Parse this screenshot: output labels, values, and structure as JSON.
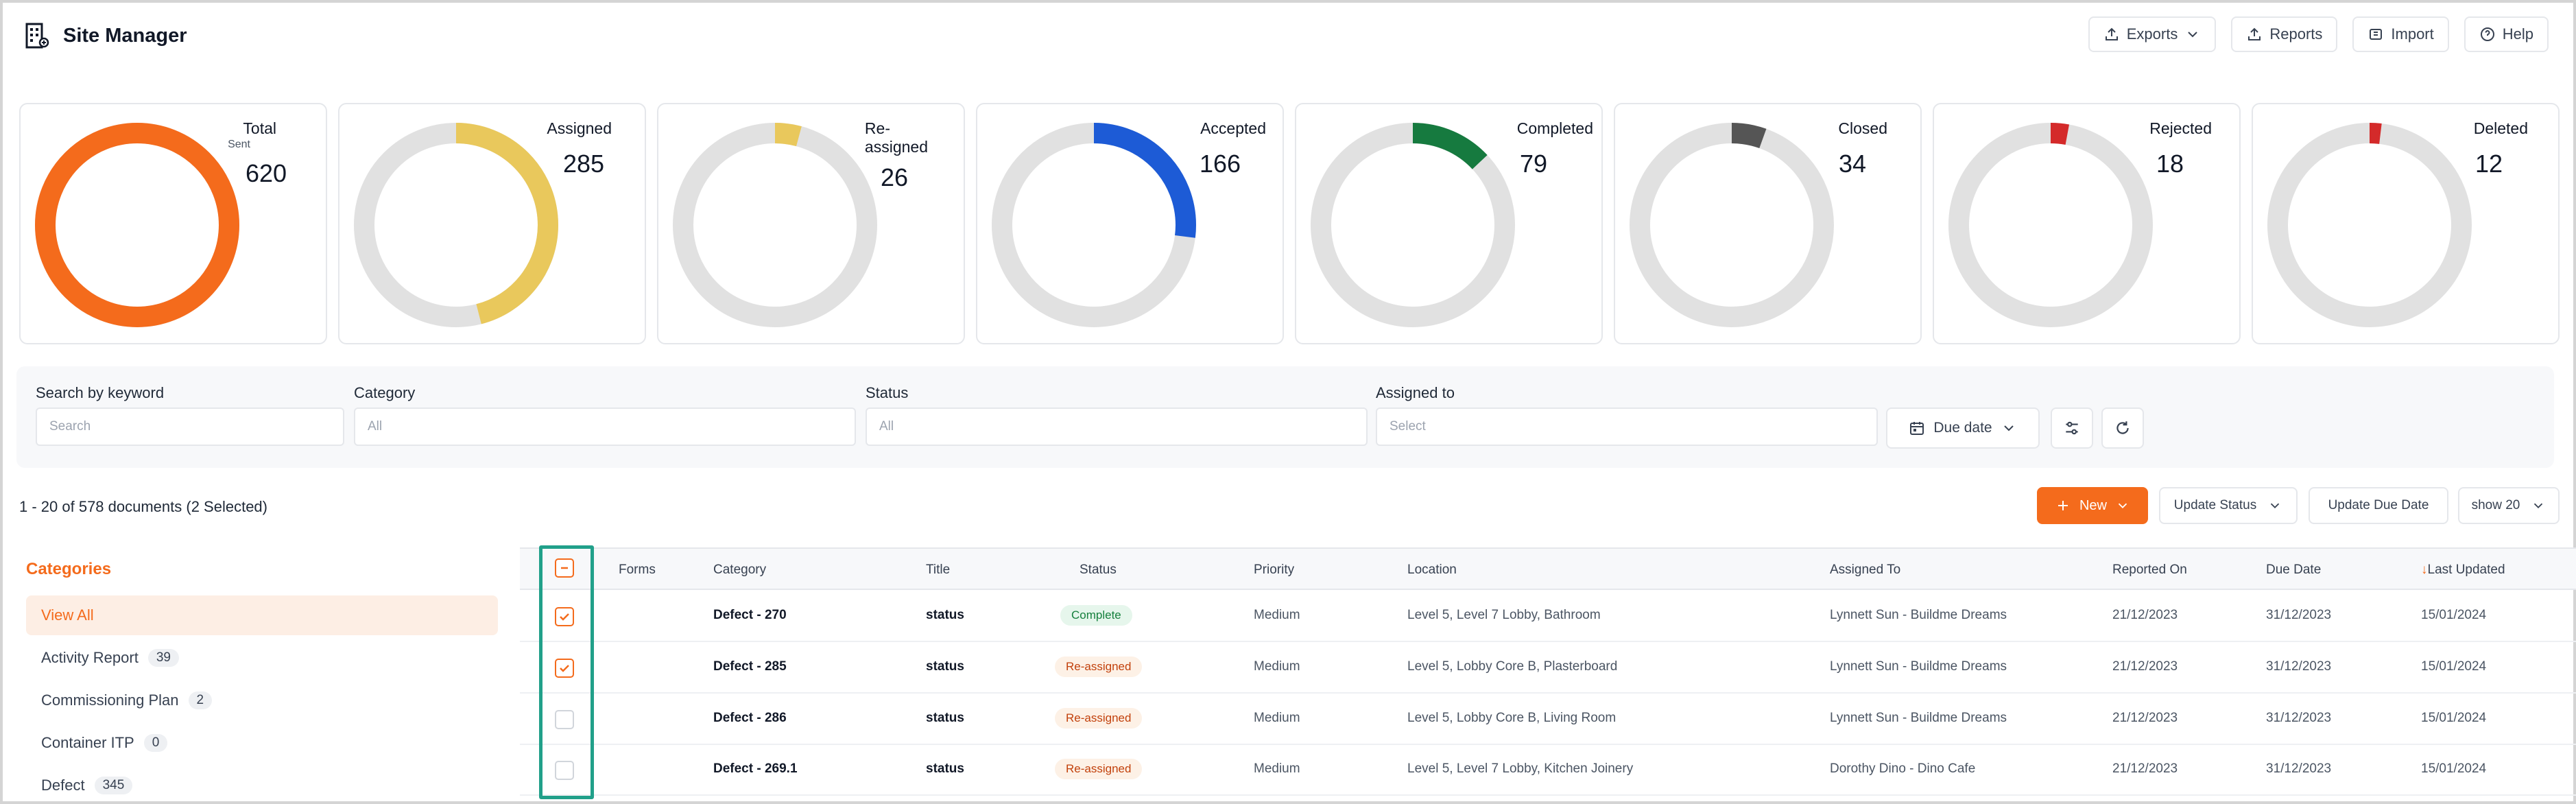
{
  "app": {
    "title": "Site Manager"
  },
  "header_actions": {
    "exports": "Exports",
    "reports": "Reports",
    "import": "Import",
    "help": "Help"
  },
  "stats": [
    {
      "label": "Total",
      "sub": "Sent",
      "value": "620",
      "fraction": 1.0,
      "color": "#f46b1c"
    },
    {
      "label": "Assigned",
      "value": "285",
      "fraction": 0.46,
      "color": "#e9c85c"
    },
    {
      "label": "Re-\nassigned",
      "value": "26",
      "fraction": 0.042,
      "color": "#e9c85c"
    },
    {
      "label": "Accepted",
      "value": "166",
      "fraction": 0.27,
      "color": "#1d5bd6"
    },
    {
      "label": "Completed",
      "value": "79",
      "fraction": 0.13,
      "color": "#167a3f"
    },
    {
      "label": "Closed",
      "value": "34",
      "fraction": 0.055,
      "color": "#555555"
    },
    {
      "label": "Rejected",
      "value": "18",
      "fraction": 0.029,
      "color": "#d42a2a"
    },
    {
      "label": "Deleted",
      "value": "12",
      "fraction": 0.019,
      "color": "#d42a2a"
    }
  ],
  "filters": {
    "keyword_label": "Search by keyword",
    "keyword_placeholder": "Search",
    "category_label": "Category",
    "category_placeholder": "All",
    "status_label": "Status",
    "status_placeholder": "All",
    "assigned_label": "Assigned to",
    "assigned_placeholder": "Select",
    "due_date": "Due date"
  },
  "docs": {
    "count_text": "1 - 20 of 578 documents (2 Selected)",
    "new_label": "New",
    "update_status": "Update Status",
    "update_due_date": "Update Due Date",
    "show": "show 20"
  },
  "categories": {
    "title": "Categories",
    "items": [
      {
        "label": "View All",
        "count": ""
      },
      {
        "label": "Activity Report",
        "count": "39"
      },
      {
        "label": "Commissioning Plan",
        "count": "2"
      },
      {
        "label": "Container ITP",
        "count": "0"
      },
      {
        "label": "Defect",
        "count": "345"
      }
    ]
  },
  "table": {
    "headers": {
      "forms": "Forms",
      "category": "Category",
      "title": "Title",
      "status": "Status",
      "priority": "Priority",
      "location": "Location",
      "assigned_to": "Assigned To",
      "reported_on": "Reported On",
      "due_date": "Due Date",
      "last_updated": "Last Updated"
    },
    "rows": [
      {
        "checked": true,
        "category": "Defect - 270",
        "title": "status",
        "status": "Complete",
        "status_type": "complete",
        "priority": "Medium",
        "location": "Level 5, Level 7 Lobby, Bathroom",
        "assigned_to": "Lynnett Sun - Buildme Dreams",
        "reported_on": "21/12/2023",
        "due_date": "31/12/2023",
        "last_updated": "15/01/2024"
      },
      {
        "checked": true,
        "category": "Defect - 285",
        "title": "status",
        "status": "Re-assigned",
        "status_type": "reassigned",
        "priority": "Medium",
        "location": "Level 5, Lobby Core B, Plasterboard",
        "assigned_to": "Lynnett Sun - Buildme Dreams",
        "reported_on": "21/12/2023",
        "due_date": "31/12/2023",
        "last_updated": "15/01/2024"
      },
      {
        "checked": false,
        "category": "Defect - 286",
        "title": "status",
        "status": "Re-assigned",
        "status_type": "reassigned",
        "priority": "Medium",
        "location": "Level 5, Lobby Core B, Living Room",
        "assigned_to": "Lynnett Sun - Buildme Dreams",
        "reported_on": "21/12/2023",
        "due_date": "31/12/2023",
        "last_updated": "15/01/2024"
      },
      {
        "checked": false,
        "category": "Defect - 269.1",
        "title": "status",
        "status": "Re-assigned",
        "status_type": "reassigned",
        "priority": "Medium",
        "location": "Level 5, Level 7 Lobby, Kitchen Joinery",
        "assigned_to": "Dorothy Dino - Dino Cafe",
        "reported_on": "21/12/2023",
        "due_date": "31/12/2023",
        "last_updated": "15/01/2024"
      }
    ]
  }
}
